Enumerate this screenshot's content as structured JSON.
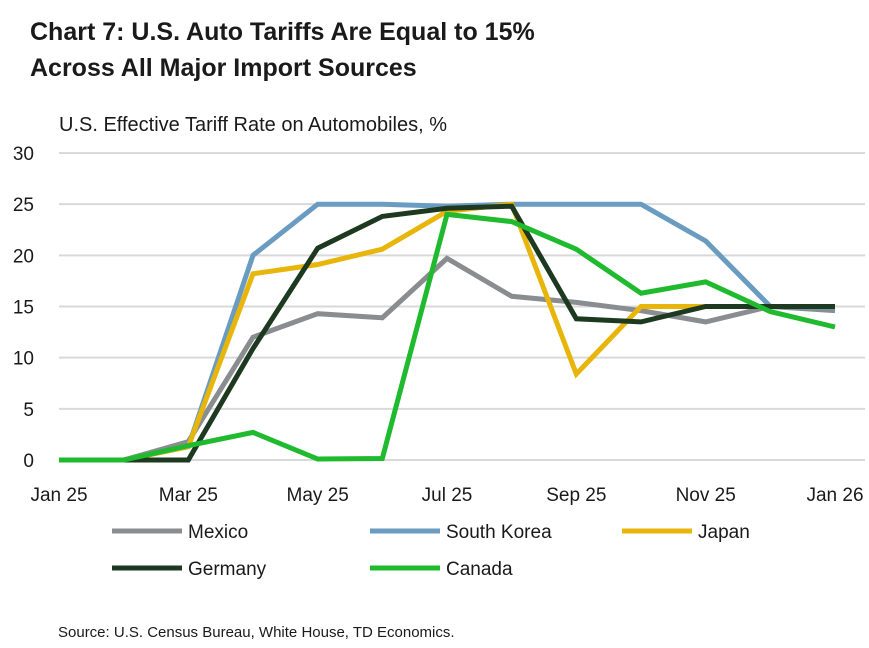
{
  "title_line1": "Chart 7: U.S. Auto Tariffs Are Equal to 15%",
  "title_line2": "Across All Major Import Sources",
  "source": "Source: U.S. Census Bureau, White House, TD Economics.",
  "chart_data": {
    "type": "line",
    "title": "Chart 7: U.S. Auto Tariffs Are Equal to 15% Across All Major Import Sources",
    "ylabel": "U.S. Effective Tariff Rate on Automobiles, %",
    "xlabel": "",
    "categories": [
      "Jan 25",
      "Feb 25",
      "Mar 25",
      "Apr 25",
      "May 25",
      "Jun 25",
      "Jul 25",
      "Aug 25",
      "Sep 25",
      "Oct 25",
      "Nov 25",
      "Dec 25",
      "Jan 26"
    ],
    "x_tick_labels": [
      "Jan 25",
      "Mar 25",
      "May 25",
      "Jul 25",
      "Sep 25",
      "Nov 25",
      "Jan 26"
    ],
    "ylim": [
      0,
      30
    ],
    "y_ticks": [
      0,
      5,
      10,
      15,
      20,
      25,
      30
    ],
    "grid": true,
    "legend_position": "bottom",
    "series": [
      {
        "name": "Mexico",
        "color": "#8a8d8f",
        "values": [
          0,
          0,
          1.8,
          12,
          14.3,
          13.9,
          19.7,
          16,
          15.4,
          14.6,
          13.5,
          15,
          14.6
        ]
      },
      {
        "name": "South Korea",
        "color": "#6a9cc1",
        "values": [
          0,
          0,
          1.3,
          20,
          25,
          25,
          24.8,
          25,
          25,
          25,
          21.4,
          15,
          14.9
        ]
      },
      {
        "name": "Japan",
        "color": "#e8b50a",
        "values": [
          0,
          0,
          1.3,
          18.2,
          19.1,
          20.6,
          24.3,
          25,
          8.4,
          15,
          15,
          15,
          15
        ]
      },
      {
        "name": "Germany",
        "color": "#1d3a21",
        "values": [
          0,
          0,
          0,
          10.9,
          20.7,
          23.8,
          24.6,
          24.8,
          13.8,
          13.5,
          15,
          15,
          15
        ]
      },
      {
        "name": "Canada",
        "color": "#1fba2e",
        "values": [
          0,
          0,
          1.4,
          2.7,
          0.1,
          0.15,
          24,
          23.3,
          20.6,
          16.3,
          17.4,
          14.5,
          13
        ]
      }
    ]
  }
}
